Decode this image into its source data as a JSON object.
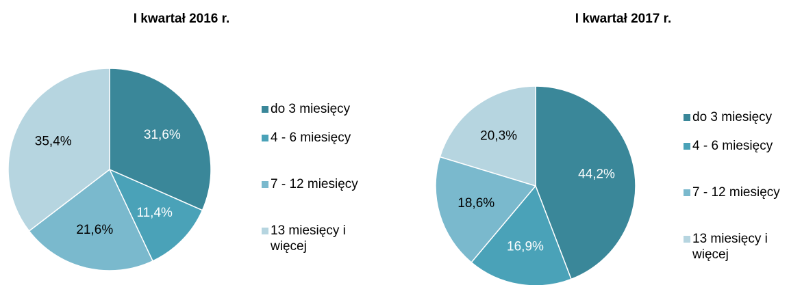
{
  "chart_data": [
    {
      "type": "pie",
      "title": "I kwartał 2016 r.",
      "categories": [
        "do 3 miesięcy",
        "4 - 6 miesięcy",
        "7 - 12 miesięcy",
        "13 miesięcy i więcej"
      ],
      "values": [
        31.6,
        11.4,
        21.6,
        35.4
      ],
      "value_labels": [
        "31,6%",
        "11,4%",
        "21,6%",
        "35,4%"
      ],
      "colors": [
        "#3a8799",
        "#4aa2b8",
        "#7ab9cd",
        "#b6d5e0"
      ]
    },
    {
      "type": "pie",
      "title": "I kwartał 2017 r.",
      "categories": [
        "do 3 miesięcy",
        "4 - 6 miesięcy",
        "7 - 12 miesięcy",
        "13 miesięcy i więcej"
      ],
      "values": [
        44.2,
        16.9,
        18.6,
        20.3
      ],
      "value_labels": [
        "44,2%",
        "16,9%",
        "18,6%",
        "20,3%"
      ],
      "colors": [
        "#3a8799",
        "#4aa2b8",
        "#7ab9cd",
        "#b6d5e0"
      ]
    }
  ]
}
